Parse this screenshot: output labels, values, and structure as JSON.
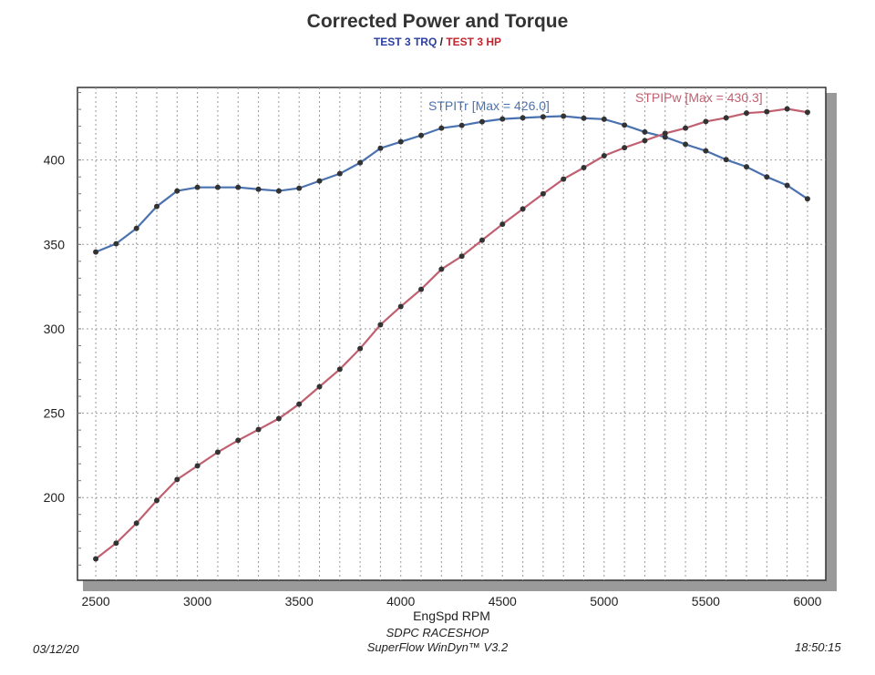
{
  "header": {
    "title": "Corrected Power and Torque",
    "subtitle_trq": "TEST 3 TRQ",
    "subtitle_sep": "/",
    "subtitle_hp": "TEST 3 HP"
  },
  "footer": {
    "date": "03/12/20",
    "shop": "SDPC RACESHOP",
    "software": "SuperFlow WinDyn™ V3.2",
    "time": "18:50:15"
  },
  "chart_data": {
    "type": "line",
    "title": "Corrected Power and Torque",
    "xlabel": "EngSpd RPM",
    "ylabel": "",
    "xlim": [
      2410,
      6090
    ],
    "ylim": [
      151,
      443
    ],
    "xticks": [
      2500,
      3000,
      3500,
      4000,
      4500,
      5000,
      5500,
      6000
    ],
    "yticks": [
      200,
      250,
      300,
      350,
      400
    ],
    "grid": true,
    "x": [
      2500,
      2600,
      2700,
      2800,
      2900,
      3000,
      3100,
      3200,
      3300,
      3400,
      3500,
      3600,
      3700,
      3800,
      3900,
      4000,
      4100,
      4200,
      4300,
      4400,
      4500,
      4600,
      4700,
      4800,
      4900,
      5000,
      5100,
      5200,
      5300,
      5400,
      5500,
      5600,
      5700,
      5800,
      5900,
      6000
    ],
    "series": [
      {
        "name": "STPITr [Max = 426.0]",
        "color": "#4a72b0",
        "values": [
          345.5,
          350.4,
          359.5,
          372.5,
          381.7,
          383.8,
          383.8,
          383.8,
          382.7,
          381.7,
          383.3,
          387.6,
          391.9,
          398.4,
          407,
          410.8,
          414.6,
          418.9,
          420.5,
          422.7,
          424.3,
          425,
          425.6,
          426.0,
          424.8,
          424.2,
          420.7,
          416.6,
          413.6,
          409.3,
          405.4,
          400.2,
          396,
          390,
          385,
          377
        ]
      },
      {
        "name": "STPIPw [Max = 430.3]",
        "color": "#c06070",
        "values": [
          163.7,
          173,
          184.8,
          198.3,
          210.7,
          218.8,
          226.9,
          233.9,
          240.3,
          246.8,
          255.4,
          265.7,
          276,
          288.3,
          302.4,
          313.2,
          323.4,
          335.3,
          343,
          352.5,
          362,
          371,
          380,
          388.7,
          395.5,
          402.5,
          407.3,
          411.5,
          415.8,
          418.9,
          422.8,
          425,
          427.8,
          428.6,
          430.3,
          428.3
        ]
      }
    ]
  }
}
